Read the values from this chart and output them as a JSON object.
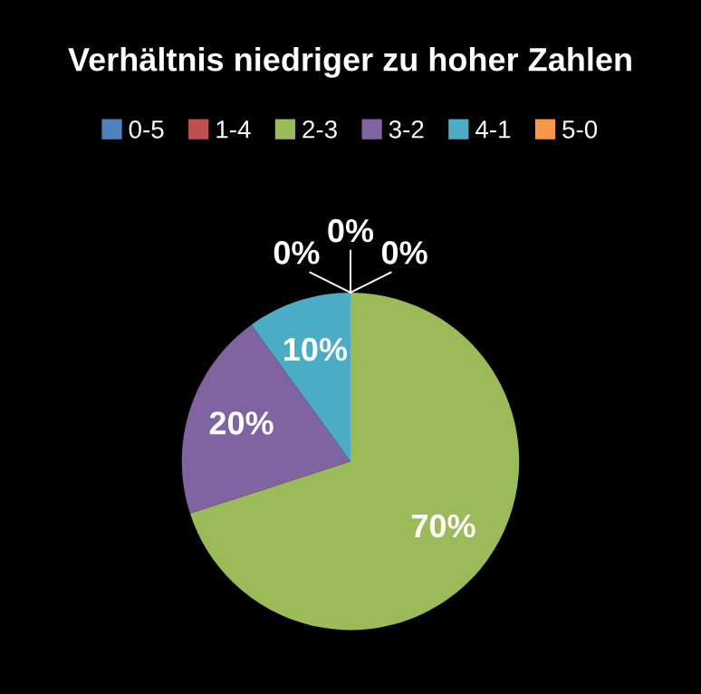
{
  "chart_data": {
    "type": "pie",
    "title": "Verhältnis niedriger zu hoher Zahlen",
    "categories": [
      "0-5",
      "1-4",
      "2-3",
      "3-2",
      "4-1",
      "5-0"
    ],
    "values": [
      0,
      0,
      70,
      20,
      10,
      0
    ],
    "colors": [
      "#4f81bd",
      "#c0504d",
      "#9bbb59",
      "#8064a2",
      "#4bacc6",
      "#f79646"
    ],
    "value_labels": [
      "0%",
      "0%",
      "70%",
      "20%",
      "10%",
      "0%"
    ],
    "legend": "top"
  }
}
